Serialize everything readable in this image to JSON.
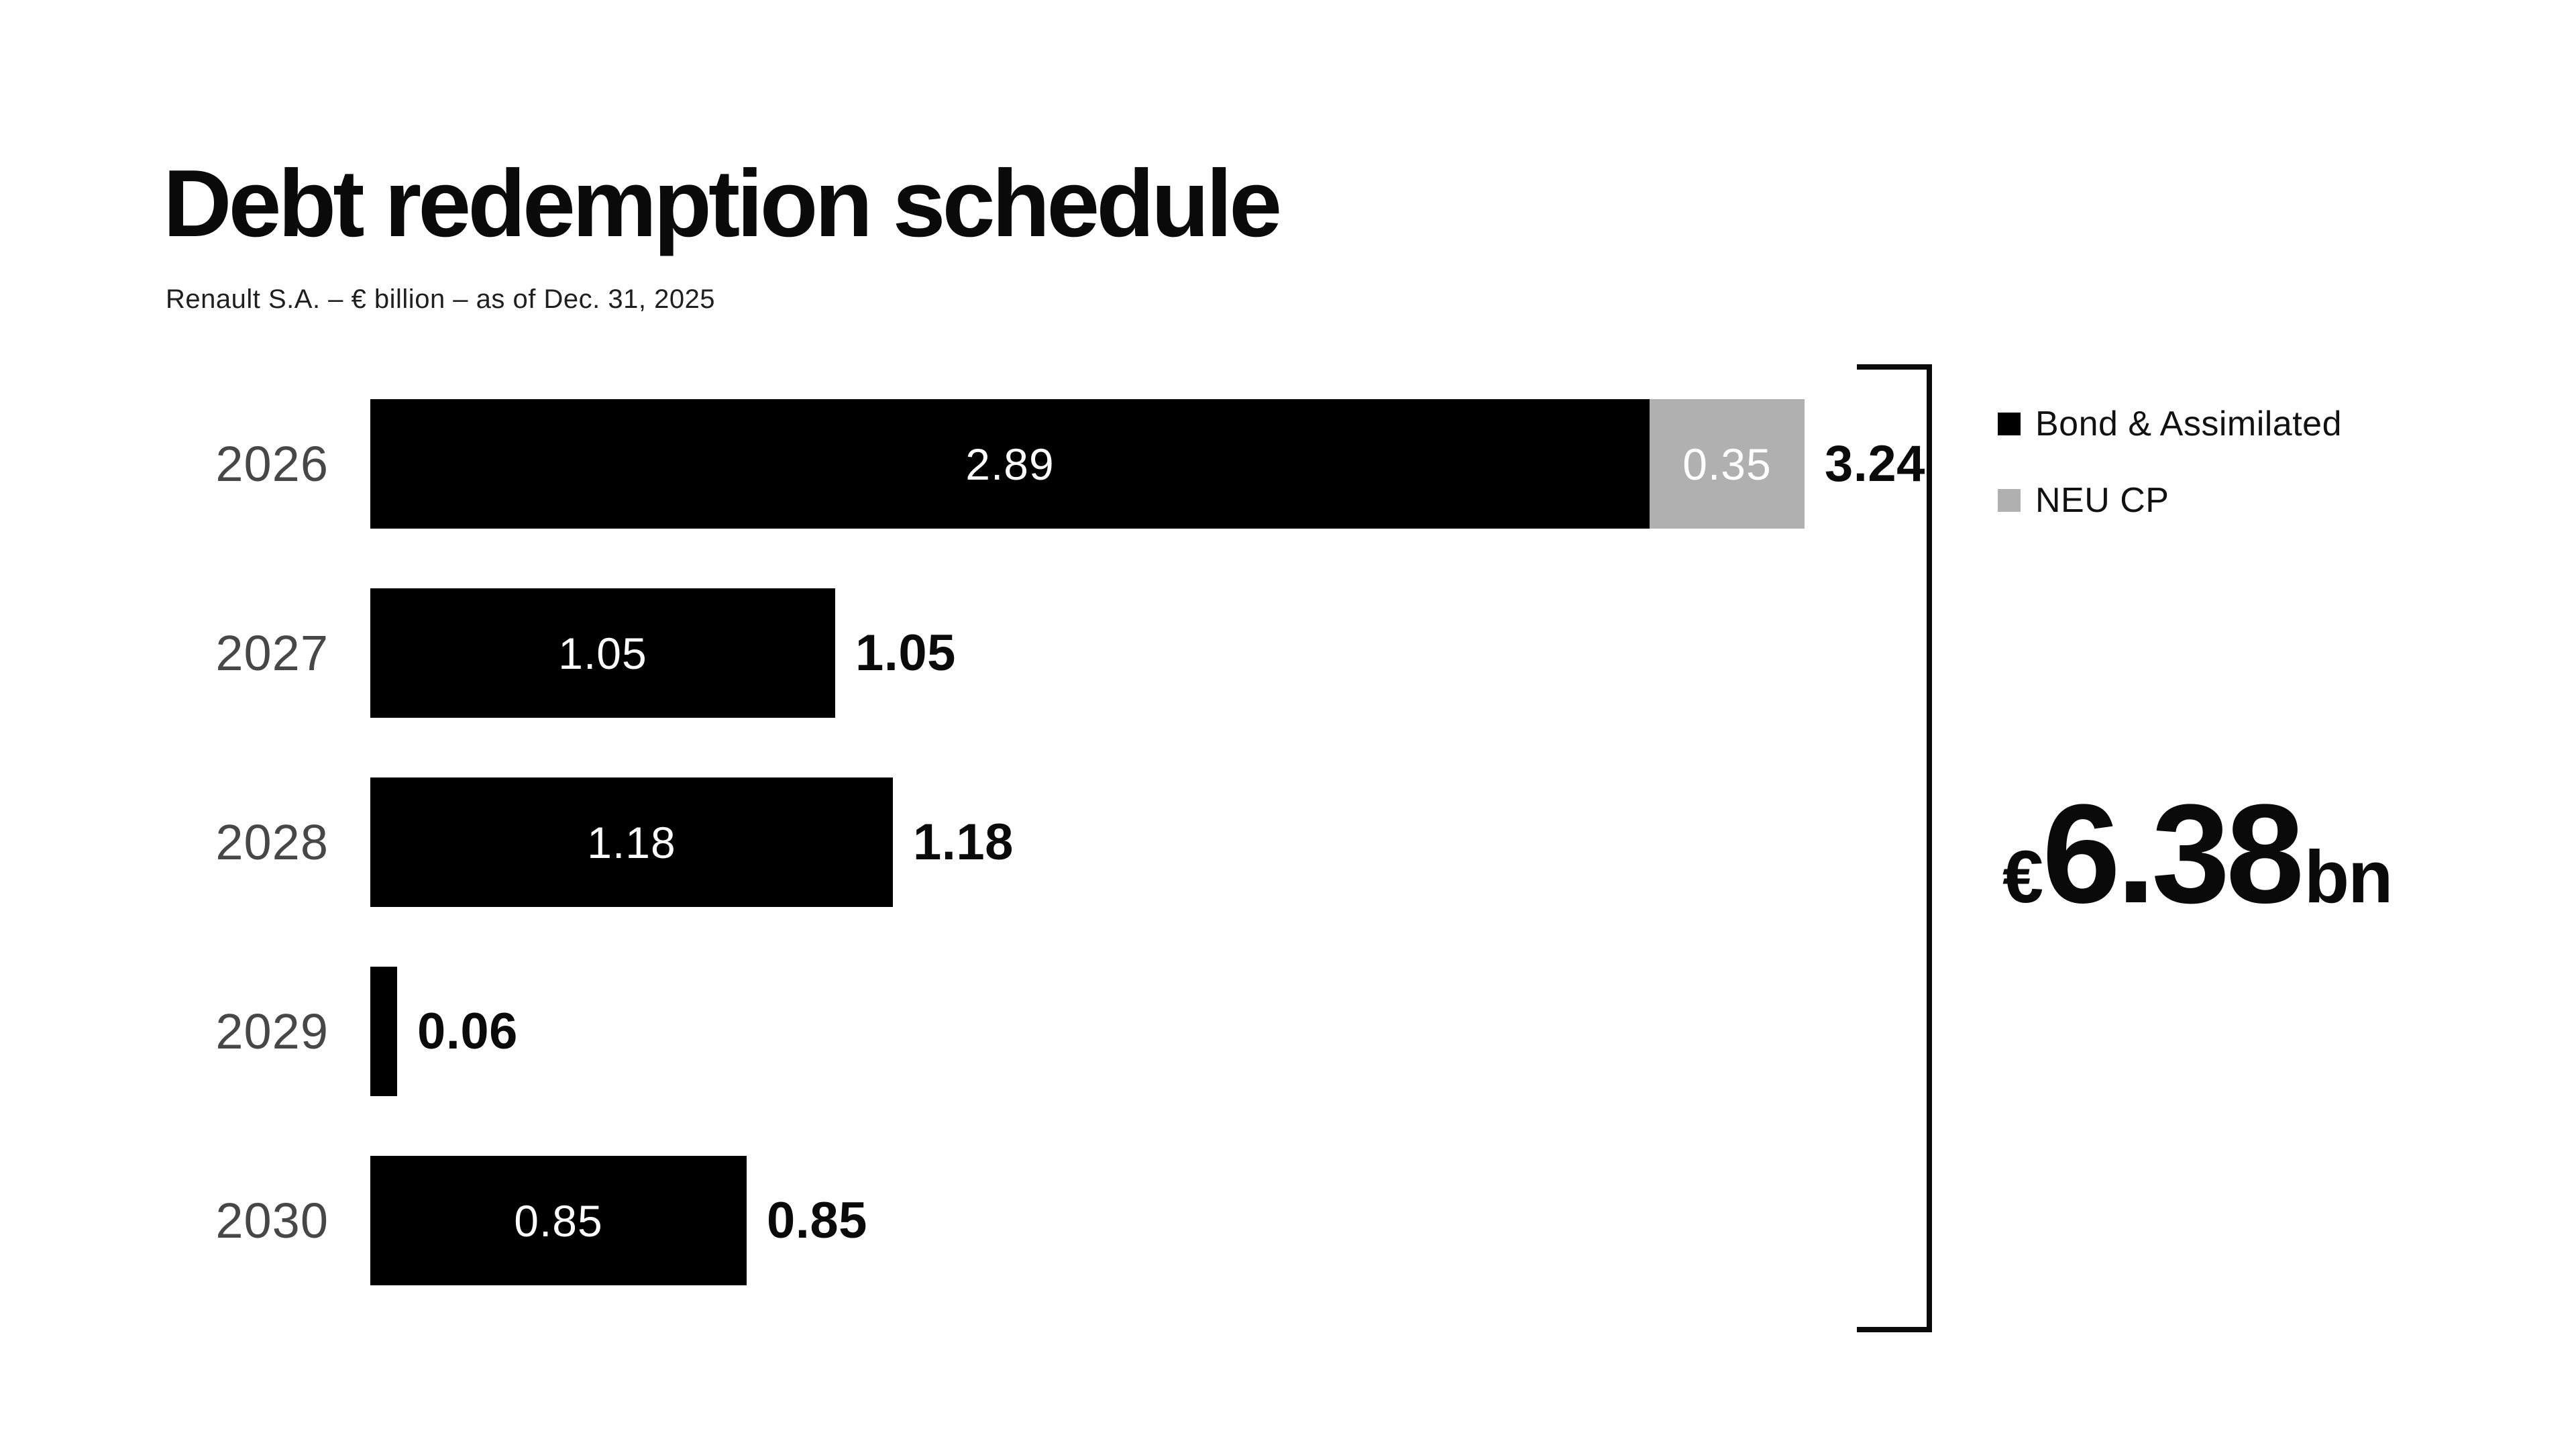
{
  "page": {
    "background": "#ffffff"
  },
  "header": {
    "title": "Debt redemption schedule",
    "subtitle": "Renault S.A. – € billion – as of Dec. 31, 2025"
  },
  "legend": {
    "items": [
      {
        "label": "Bond & Assimilated",
        "color": "#000000"
      },
      {
        "label": "NEU CP",
        "color": "#b0b0b0"
      }
    ]
  },
  "total": {
    "currency": "€",
    "value": "6.38",
    "unit": "bn"
  },
  "colors": {
    "bond": "#000000",
    "neu_cp": "#b0b0b0",
    "bar_value_text": "#ffffff",
    "year_label": "#474747",
    "total_text": "#0a0a0a",
    "bracket": "#0a0a0a"
  },
  "chart_data": {
    "type": "bar",
    "orientation": "horizontal",
    "stacked": true,
    "title": "Debt redemption schedule",
    "subtitle": "Renault S.A. – € billion – as of Dec. 31, 2025",
    "unit": "€ billion",
    "categories": [
      "2026",
      "2027",
      "2028",
      "2029",
      "2030"
    ],
    "series": [
      {
        "name": "Bond & Assimilated",
        "color": "#000000",
        "values": [
          2.89,
          1.05,
          1.18,
          0.06,
          0.85
        ]
      },
      {
        "name": "NEU CP",
        "color": "#b0b0b0",
        "values": [
          0.35,
          0,
          0,
          0,
          0
        ]
      }
    ],
    "totals": [
      3.24,
      1.05,
      1.18,
      0.06,
      0.85
    ],
    "grand_total": 6.38,
    "grand_total_label": "€6.38bn",
    "xlim": [
      0,
      3.4
    ],
    "grid": false,
    "legend_position": "top-right",
    "min_value_for_inside_label": 0.2
  }
}
